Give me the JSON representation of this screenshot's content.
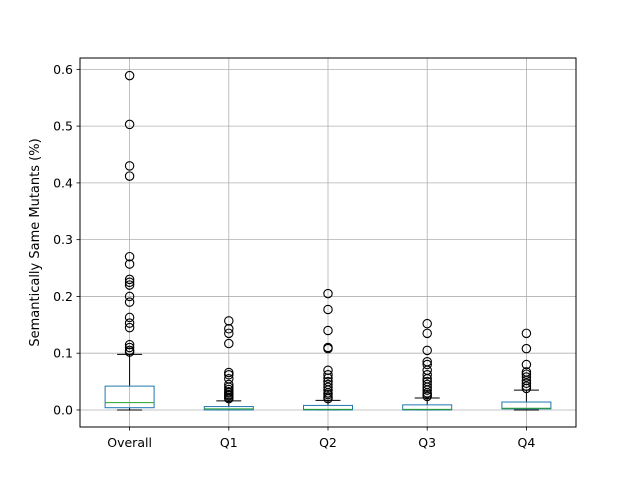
{
  "chart_data": {
    "type": "box",
    "ylabel": "Semantically Same Mutants (%)",
    "xlabel": "",
    "ylim": [
      -0.03,
      0.62
    ],
    "yticks": [
      0.0,
      0.1,
      0.2,
      0.3,
      0.4,
      0.5,
      0.6
    ],
    "ytick_labels": [
      "0.0",
      "0.1",
      "0.2",
      "0.3",
      "0.4",
      "0.5",
      "0.6"
    ],
    "grid": true,
    "colors": {
      "box": "#1f77b4",
      "median": "#2ca02c",
      "whisker": "#000000",
      "grid": "#b0b0b0"
    },
    "categories": [
      "Overall",
      "Q1",
      "Q2",
      "Q3",
      "Q4"
    ],
    "boxes": [
      {
        "name": "Overall",
        "whislo": 0.0,
        "q1": 0.004,
        "median": 0.013,
        "q3": 0.042,
        "whishi": 0.098,
        "fliers": [
          0.589,
          0.503,
          0.43,
          0.412,
          0.27,
          0.257,
          0.23,
          0.225,
          0.22,
          0.2,
          0.19,
          0.163,
          0.153,
          0.145,
          0.115,
          0.11,
          0.105,
          0.102
        ]
      },
      {
        "name": "Q1",
        "whislo": 0.0,
        "q1": 0.0,
        "median": 0.002,
        "q3": 0.006,
        "whishi": 0.016,
        "fliers": [
          0.157,
          0.143,
          0.135,
          0.117,
          0.066,
          0.062,
          0.055,
          0.045,
          0.04,
          0.036,
          0.032,
          0.03,
          0.027,
          0.025,
          0.022,
          0.02
        ]
      },
      {
        "name": "Q2",
        "whislo": 0.0,
        "q1": 0.0,
        "median": 0.001,
        "q3": 0.008,
        "whishi": 0.017,
        "fliers": [
          0.205,
          0.177,
          0.14,
          0.11,
          0.108,
          0.07,
          0.062,
          0.056,
          0.05,
          0.045,
          0.04,
          0.035,
          0.03,
          0.027,
          0.023,
          0.02
        ]
      },
      {
        "name": "Q3",
        "whislo": 0.0,
        "q1": 0.0,
        "median": 0.001,
        "q3": 0.009,
        "whishi": 0.021,
        "fliers": [
          0.152,
          0.135,
          0.105,
          0.085,
          0.08,
          0.07,
          0.062,
          0.055,
          0.05,
          0.045,
          0.04,
          0.035,
          0.03,
          0.027,
          0.024
        ]
      },
      {
        "name": "Q4",
        "whislo": 0.0,
        "q1": 0.002,
        "median": 0.003,
        "q3": 0.014,
        "whishi": 0.035,
        "fliers": [
          0.135,
          0.108,
          0.08,
          0.067,
          0.063,
          0.058,
          0.052,
          0.047,
          0.042,
          0.038
        ]
      }
    ]
  }
}
